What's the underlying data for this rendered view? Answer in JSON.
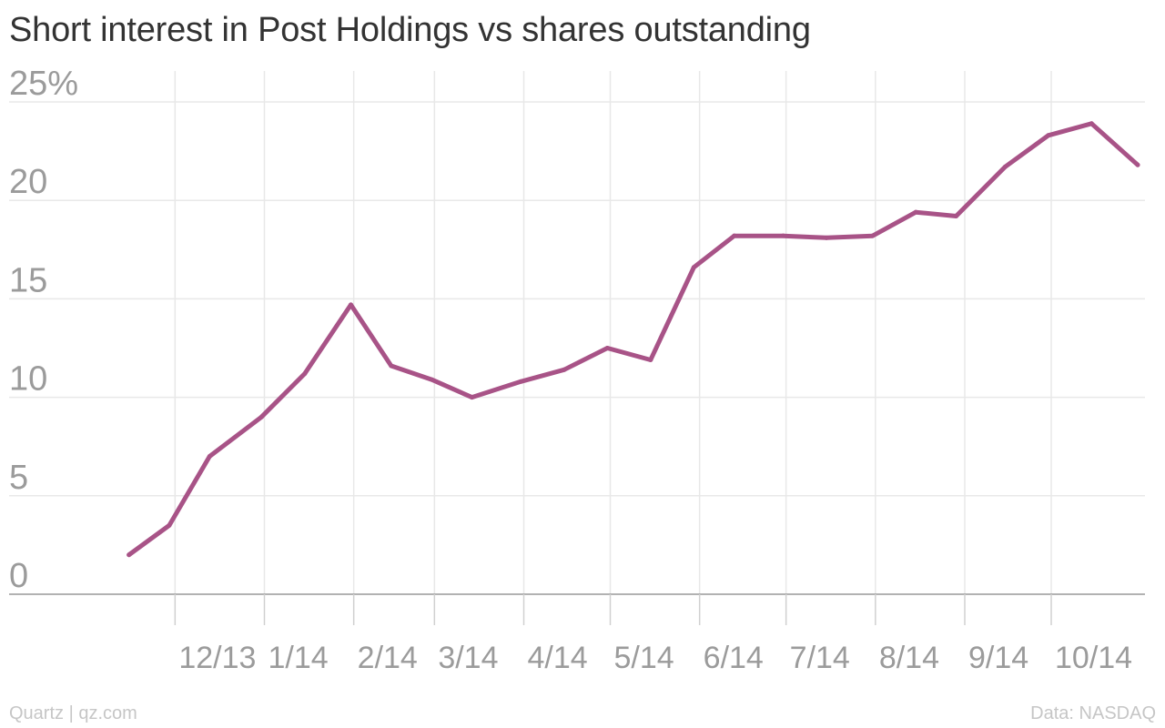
{
  "title": "Short interest in Post Holdings vs shares outstanding",
  "footer": {
    "credit": "Quartz | qz.com",
    "source": "Data: NASDAQ"
  },
  "colors": {
    "line": "#a85387",
    "grid": "#e8e8e8",
    "baseline": "#999999",
    "tick_label": "#9b9b9b"
  },
  "chart_data": {
    "type": "line",
    "title": "Short interest in Post Holdings vs shares outstanding",
    "xlabel": "",
    "ylabel": "",
    "y_unit": "%",
    "ylim": [
      0,
      25
    ],
    "yticks": [
      {
        "value": 0,
        "label": "0"
      },
      {
        "value": 5,
        "label": "5"
      },
      {
        "value": 10,
        "label": "10"
      },
      {
        "value": 15,
        "label": "15"
      },
      {
        "value": 20,
        "label": "20"
      },
      {
        "value": 25,
        "label": "25%"
      }
    ],
    "xlim": [
      "2013-11-05",
      "2014-10-31"
    ],
    "xticks": [
      {
        "date": "2013-12-01",
        "label": "12/13"
      },
      {
        "date": "2014-01-01",
        "label": "1/14"
      },
      {
        "date": "2014-02-01",
        "label": "2/14"
      },
      {
        "date": "2014-03-01",
        "label": "3/14"
      },
      {
        "date": "2014-04-01",
        "label": "4/14"
      },
      {
        "date": "2014-05-01",
        "label": "5/14"
      },
      {
        "date": "2014-06-01",
        "label": "6/14"
      },
      {
        "date": "2014-07-01",
        "label": "7/14"
      },
      {
        "date": "2014-08-01",
        "label": "8/14"
      },
      {
        "date": "2014-09-01",
        "label": "9/14"
      },
      {
        "date": "2014-10-01",
        "label": "10/14"
      }
    ],
    "grid": true,
    "series": [
      {
        "x": [
          "2013-11-15",
          "2013-11-29",
          "2013-12-13",
          "2013-12-31",
          "2014-01-15",
          "2014-01-31",
          "2014-02-14",
          "2014-02-28",
          "2014-03-14",
          "2014-03-31",
          "2014-04-15",
          "2014-04-30",
          "2014-05-15",
          "2014-05-30",
          "2014-06-13",
          "2014-06-30",
          "2014-07-15",
          "2014-07-31",
          "2014-08-15",
          "2014-08-29",
          "2014-09-15",
          "2014-09-30",
          "2014-10-15",
          "2014-10-31"
        ],
        "values": [
          2.0,
          3.5,
          7.0,
          9.0,
          11.2,
          14.7,
          11.6,
          10.9,
          10.0,
          10.8,
          11.4,
          12.5,
          11.9,
          16.6,
          18.2,
          18.2,
          18.1,
          18.2,
          19.4,
          19.2,
          21.7,
          23.3,
          23.9,
          21.8
        ]
      }
    ]
  }
}
